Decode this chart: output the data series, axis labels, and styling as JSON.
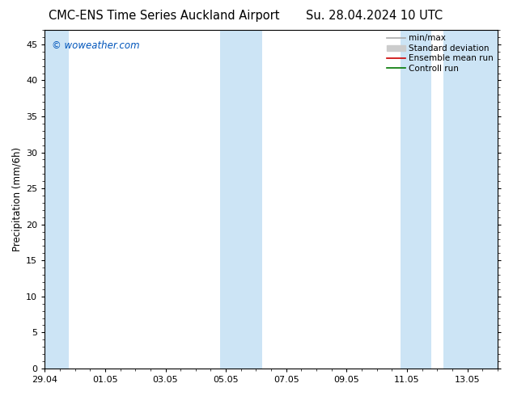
{
  "title_left": "CMC-ENS Time Series Auckland Airport",
  "title_right": "Su. 28.04.2024 10 UTC",
  "ylabel": "Precipitation (mm/6h)",
  "watermark": "© woweather.com",
  "watermark_color": "#0055bb",
  "ylim": [
    0,
    47
  ],
  "yticks": [
    0,
    5,
    10,
    15,
    20,
    25,
    30,
    35,
    40,
    45
  ],
  "xlim": [
    0,
    15
  ],
  "xtick_labels": [
    "29.04",
    "01.05",
    "03.05",
    "05.05",
    "07.05",
    "09.05",
    "11.05",
    "13.05"
  ],
  "xtick_positions": [
    0,
    2,
    4,
    6,
    8,
    10,
    12,
    14
  ],
  "shaded_bands": [
    {
      "start": 0.0,
      "end": 0.8,
      "color": "#cce4f5"
    },
    {
      "start": 5.8,
      "end": 7.2,
      "color": "#cce4f5"
    },
    {
      "start": 11.8,
      "end": 12.8,
      "color": "#cce4f5"
    },
    {
      "start": 13.2,
      "end": 15.0,
      "color": "#cce4f5"
    }
  ],
  "legend_entries": [
    {
      "label": "min/max",
      "color": "#aaaaaa",
      "lw": 1.2,
      "type": "line"
    },
    {
      "label": "Standard deviation",
      "color": "#cccccc",
      "lw": 5,
      "type": "patch"
    },
    {
      "label": "Ensemble mean run",
      "color": "#cc0000",
      "lw": 1.2,
      "type": "line"
    },
    {
      "label": "Controll run",
      "color": "#007700",
      "lw": 1.2,
      "type": "line"
    }
  ],
  "bg_color": "#ffffff",
  "title_fontsize": 10.5,
  "axis_fontsize": 8.5,
  "tick_fontsize": 8,
  "legend_fontsize": 7.5
}
